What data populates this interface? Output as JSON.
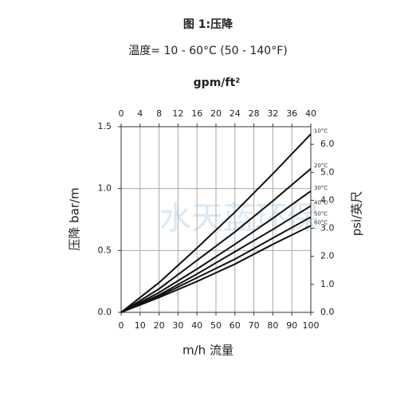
{
  "chart_data": {
    "type": "line",
    "title": "图 1:压降",
    "subtitle": "温度= 10 - 60°C (50 - 140°F)",
    "watermark": "水天蓝环保",
    "x_label": "m/h 流量",
    "x2_label": "gpm/ft²",
    "y_label": "压降 bar/m",
    "y2_label": "psi/英尺",
    "x": [
      0,
      20,
      40,
      60,
      80,
      100
    ],
    "xlim": [
      0,
      100
    ],
    "xticks": [
      0,
      10,
      20,
      30,
      40,
      50,
      60,
      70,
      80,
      90,
      100
    ],
    "x2lim": [
      0,
      40
    ],
    "x2ticks": [
      0,
      4,
      8,
      12,
      16,
      20,
      24,
      28,
      32,
      36,
      40
    ],
    "ylim": [
      0,
      1.5
    ],
    "yticks": [
      {
        "value": 0,
        "label": "0.0"
      },
      {
        "value": 0.5,
        "label": "0.5"
      },
      {
        "value": 1,
        "label": "1.0"
      },
      {
        "value": 1.5,
        "label": "1.5"
      }
    ],
    "y2lim": [
      0,
      6.63
    ],
    "y2ticks": [
      {
        "value": 0,
        "label": "0.0"
      },
      {
        "value": 1,
        "label": "1.0"
      },
      {
        "value": 2,
        "label": "2.0"
      },
      {
        "value": 3,
        "label": "3.0"
      },
      {
        "value": 4,
        "label": "4.0"
      },
      {
        "value": 5,
        "label": "5.0"
      },
      {
        "value": 6,
        "label": "6.0"
      }
    ],
    "grid": true,
    "color": "#111111",
    "series": [
      {
        "name": "10°C",
        "color": "#111111",
        "values": [
          0,
          0.24,
          0.52,
          0.81,
          1.12,
          1.44
        ]
      },
      {
        "name": "20°C",
        "color": "#111111",
        "values": [
          0,
          0.19,
          0.42,
          0.65,
          0.9,
          1.16
        ]
      },
      {
        "name": "30°C",
        "color": "#111111",
        "values": [
          0,
          0.16,
          0.35,
          0.55,
          0.76,
          0.98
        ]
      },
      {
        "name": "40°C",
        "color": "#111111",
        "values": [
          0,
          0.14,
          0.31,
          0.49,
          0.67,
          0.86
        ]
      },
      {
        "name": "50°C",
        "color": "#111111",
        "values": [
          0,
          0.13,
          0.28,
          0.43,
          0.6,
          0.77
        ]
      },
      {
        "name": "60°C",
        "color": "#111111",
        "values": [
          0,
          0.12,
          0.25,
          0.39,
          0.55,
          0.7
        ]
      }
    ]
  }
}
